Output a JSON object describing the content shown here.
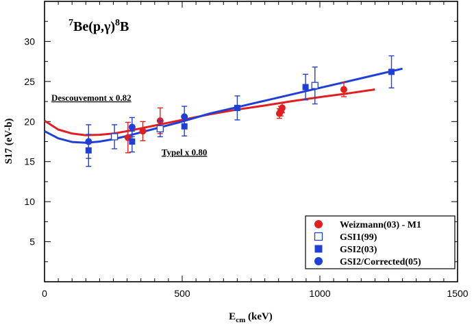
{
  "chart_data": {
    "type": "scatter",
    "title": {
      "pre_sup": "7",
      "main": "Be(p,γ)",
      "mid_sup": "8",
      "post": "B"
    },
    "xlabel": {
      "main": "E",
      "sub": "cm",
      "post": " (keV)"
    },
    "ylabel": "S17 (eV-b)",
    "xlim": [
      0,
      1500
    ],
    "ylim": [
      0,
      35
    ],
    "xticks": [
      0,
      500,
      1000,
      1500
    ],
    "yticks": [
      5,
      10,
      15,
      20,
      25,
      30
    ],
    "xtick_labels": [
      "0",
      "500",
      "1000",
      "1500"
    ],
    "ytick_labels": [
      "5",
      "10",
      "15",
      "20",
      "25",
      "30"
    ],
    "grid": false,
    "legend_position": "bottom-right",
    "annotations": [
      {
        "text": "Descouvemont x 0.82",
        "x": 25,
        "y": 22.6
      },
      {
        "text": "Typel x 0.80",
        "x": 425,
        "y": 15.8
      }
    ],
    "curves": [
      {
        "name": "Descouvemont x 0.82",
        "color": "#e02020",
        "x": [
          0,
          50,
          100,
          150,
          200,
          250,
          300,
          400,
          500,
          600,
          700,
          800,
          900,
          1000,
          1100,
          1200
        ],
        "y": [
          20.1,
          19.0,
          18.5,
          18.3,
          18.35,
          18.5,
          18.8,
          19.5,
          20.2,
          20.9,
          21.5,
          22.0,
          22.55,
          23.05,
          23.5,
          24.0
        ]
      },
      {
        "name": "Typel x 0.80",
        "color": "#1f3fd6",
        "x": [
          0,
          50,
          100,
          150,
          200,
          250,
          300,
          400,
          500,
          600,
          700,
          800,
          900,
          1000,
          1100,
          1200,
          1300
        ],
        "y": [
          18.8,
          17.9,
          17.45,
          17.35,
          17.5,
          17.8,
          18.2,
          19.1,
          20.0,
          21.0,
          21.8,
          22.6,
          23.4,
          24.2,
          25.0,
          25.8,
          26.6
        ]
      }
    ],
    "series": [
      {
        "name": "Weizmann(03) - M1",
        "marker": "filled-circle",
        "color": "#e02020",
        "points": [
          {
            "x": 303,
            "y": 18.0,
            "err": 1.9
          },
          {
            "x": 357,
            "y": 18.8,
            "err": 1.2
          },
          {
            "x": 420,
            "y": 20.1,
            "err": 1.6
          },
          {
            "x": 853,
            "y": 21.0,
            "err": 0.6
          },
          {
            "x": 858,
            "y": 21.3,
            "err": 0.6
          },
          {
            "x": 863,
            "y": 21.7,
            "err": 0.6
          },
          {
            "x": 1087,
            "y": 24.0,
            "err": 0.9
          }
        ]
      },
      {
        "name": "GSI1(99)",
        "marker": "open-square",
        "color": "#1f3fd6",
        "points": [
          {
            "x": 254,
            "y": 18.1,
            "err": 1.5
          },
          {
            "x": 420,
            "y": 19.1,
            "err": 1.0
          },
          {
            "x": 982,
            "y": 24.5,
            "err": 2.3
          }
        ]
      },
      {
        "name": "GSI2(03)",
        "marker": "filled-square",
        "color": "#1f3fd6",
        "points": [
          {
            "x": 160,
            "y": 16.4,
            "err": 2.0
          },
          {
            "x": 318,
            "y": 17.5,
            "err": 1.3
          },
          {
            "x": 508,
            "y": 19.4,
            "err": 1.2
          },
          {
            "x": 700,
            "y": 21.7,
            "err": 1.5
          },
          {
            "x": 948,
            "y": 24.3,
            "err": 1.6
          },
          {
            "x": 1260,
            "y": 26.2,
            "err": 2.0
          }
        ]
      },
      {
        "name": "GSI2/Corrected(05)",
        "marker": "filled-circle",
        "color": "#1f3fd6",
        "points": [
          {
            "x": 160,
            "y": 17.5,
            "err": 2.1
          },
          {
            "x": 318,
            "y": 19.3,
            "err": 1.2
          },
          {
            "x": 508,
            "y": 20.6,
            "err": 1.3
          }
        ]
      }
    ]
  }
}
